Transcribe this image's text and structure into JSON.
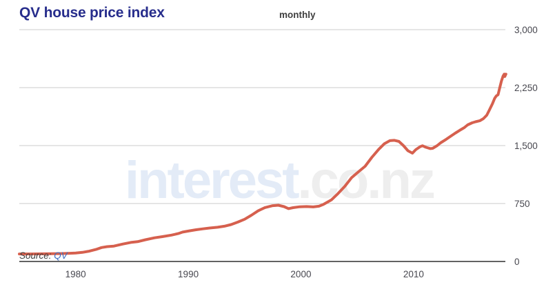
{
  "header": {
    "title": "QV house price index",
    "frequency_label": "monthly"
  },
  "watermark": {
    "part1": "interest",
    "part2": ".co.nz"
  },
  "source": {
    "label": "Source:",
    "link": "QV"
  },
  "colors": {
    "title": "#272d8c",
    "line": "#d6604e",
    "grid": "#cbcbcb",
    "axis": "#2e2e2e",
    "tick_label": "#47474f",
    "watermark_blue": "#e3ebf7",
    "watermark_gray": "#eeeeee",
    "source_link": "#3c6cc0"
  },
  "chart_data": {
    "type": "line",
    "title": "QV house price index",
    "subtitle": "monthly",
    "source": "QV",
    "xlabel": "",
    "ylabel": "",
    "xlim": [
      1975.0,
      2018.15
    ],
    "ylim": [
      0,
      3000
    ],
    "grid": "horizontal",
    "legend": "none",
    "x_ticks": [
      {
        "value": 1980,
        "label": "1980"
      },
      {
        "value": 1990,
        "label": "1990"
      },
      {
        "value": 2000,
        "label": "2000"
      },
      {
        "value": 2010,
        "label": "2010"
      }
    ],
    "y_ticks": [
      {
        "value": 0,
        "label": "0"
      },
      {
        "value": 750,
        "label": "750"
      },
      {
        "value": 1500,
        "label": "1,500"
      },
      {
        "value": 2250,
        "label": "2,250"
      },
      {
        "value": 3000,
        "label": "3,000"
      }
    ],
    "series": [
      {
        "name": "QV house price index",
        "points": [
          [
            1975.0,
            97
          ],
          [
            1975.5,
            97
          ],
          [
            1976.0,
            97
          ],
          [
            1976.6,
            98
          ],
          [
            1977.2,
            99
          ],
          [
            1977.8,
            100
          ],
          [
            1978.5,
            102
          ],
          [
            1979.0,
            104
          ],
          [
            1979.5,
            106
          ],
          [
            1980.0,
            110
          ],
          [
            1980.6,
            118
          ],
          [
            1981.2,
            133
          ],
          [
            1981.8,
            155
          ],
          [
            1982.3,
            180
          ],
          [
            1982.8,
            192
          ],
          [
            1983.4,
            199
          ],
          [
            1984.2,
            226
          ],
          [
            1984.9,
            246
          ],
          [
            1985.5,
            256
          ],
          [
            1986.2,
            281
          ],
          [
            1987.0,
            306
          ],
          [
            1987.7,
            321
          ],
          [
            1988.5,
            341
          ],
          [
            1989.1,
            361
          ],
          [
            1989.5,
            380
          ],
          [
            1990.1,
            396
          ],
          [
            1990.7,
            411
          ],
          [
            1991.3,
            422
          ],
          [
            1991.9,
            433
          ],
          [
            1992.6,
            443
          ],
          [
            1993.2,
            456
          ],
          [
            1993.8,
            478
          ],
          [
            1994.4,
            510
          ],
          [
            1995.0,
            546
          ],
          [
            1995.6,
            598
          ],
          [
            1996.2,
            655
          ],
          [
            1996.8,
            697
          ],
          [
            1997.5,
            722
          ],
          [
            1998.0,
            728
          ],
          [
            1998.5,
            710
          ],
          [
            1998.9,
            684
          ],
          [
            1999.3,
            696
          ],
          [
            1999.9,
            708
          ],
          [
            2000.5,
            711
          ],
          [
            2001.1,
            706
          ],
          [
            2001.6,
            715
          ],
          [
            2002.0,
            738
          ],
          [
            2002.7,
            796
          ],
          [
            2003.3,
            880
          ],
          [
            2003.9,
            973
          ],
          [
            2004.5,
            1085
          ],
          [
            2005.1,
            1160
          ],
          [
            2005.7,
            1232
          ],
          [
            2006.3,
            1348
          ],
          [
            2006.9,
            1450
          ],
          [
            2007.4,
            1523
          ],
          [
            2007.9,
            1563
          ],
          [
            2008.3,
            1568
          ],
          [
            2008.7,
            1554
          ],
          [
            2009.1,
            1500
          ],
          [
            2009.5,
            1433
          ],
          [
            2009.9,
            1402
          ],
          [
            2010.2,
            1447
          ],
          [
            2010.6,
            1487
          ],
          [
            2010.8,
            1497
          ],
          [
            2011.1,
            1478
          ],
          [
            2011.5,
            1461
          ],
          [
            2011.7,
            1464
          ],
          [
            2012.1,
            1500
          ],
          [
            2012.4,
            1536
          ],
          [
            2012.9,
            1581
          ],
          [
            2013.3,
            1621
          ],
          [
            2013.7,
            1661
          ],
          [
            2014.1,
            1697
          ],
          [
            2014.5,
            1732
          ],
          [
            2014.8,
            1768
          ],
          [
            2015.2,
            1795
          ],
          [
            2015.5,
            1808
          ],
          [
            2015.9,
            1822
          ],
          [
            2016.2,
            1848
          ],
          [
            2016.5,
            1893
          ],
          [
            2016.7,
            1951
          ],
          [
            2017.0,
            2040
          ],
          [
            2017.2,
            2112
          ],
          [
            2017.35,
            2143
          ],
          [
            2017.5,
            2158
          ],
          [
            2017.65,
            2246
          ],
          [
            2017.8,
            2335
          ],
          [
            2017.95,
            2400
          ],
          [
            2018.05,
            2424
          ],
          [
            2018.1,
            2394
          ],
          [
            2018.2,
            2425
          ]
        ]
      }
    ]
  }
}
